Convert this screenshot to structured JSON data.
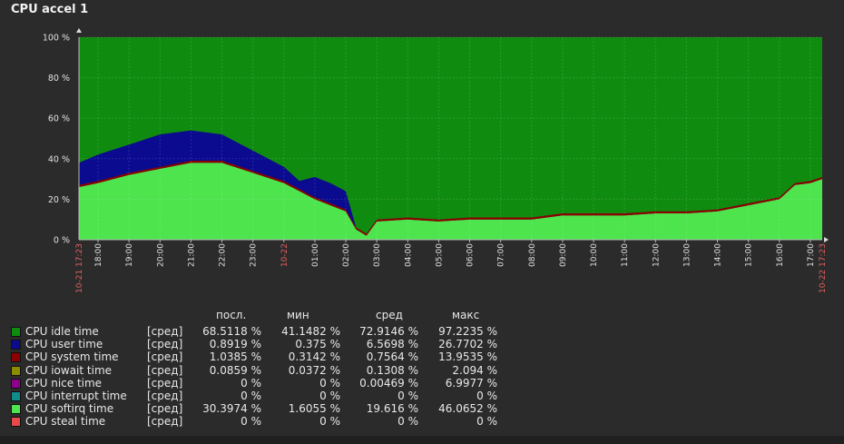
{
  "chart_data": {
    "type": "area",
    "title": "CPU accel 1",
    "ylim": [
      0,
      100
    ],
    "y_ticks": [
      "0 %",
      "20 %",
      "40 %",
      "60 %",
      "80 %",
      "100 %"
    ],
    "x_start_label": "10-21 17:23",
    "x_end_label": "10-22 17:23",
    "x_ticks": [
      "18:00",
      "19:00",
      "20:00",
      "21:00",
      "22:00",
      "23:00",
      "10-22",
      "01:00",
      "02:00",
      "03:00",
      "04:00",
      "05:00",
      "06:00",
      "07:00",
      "08:00",
      "09:00",
      "10:00",
      "11:00",
      "12:00",
      "13:00",
      "14:00",
      "15:00",
      "16:00",
      "17:00"
    ],
    "x_ticks_red": [
      "10-22"
    ],
    "grid": true,
    "x": [
      "17:23",
      "18:00",
      "19:00",
      "20:00",
      "21:00",
      "22:00",
      "23:00",
      "00:00",
      "00:30",
      "01:00",
      "01:30",
      "02:00",
      "02:20",
      "02:40",
      "03:00",
      "04:00",
      "05:00",
      "06:00",
      "07:00",
      "08:00",
      "09:00",
      "10:00",
      "11:00",
      "12:00",
      "13:00",
      "14:00",
      "15:00",
      "16:00",
      "16:30",
      "17:00",
      "17:23"
    ],
    "series": [
      {
        "name": "CPU softirq time",
        "color": "#4ee44e",
        "values": [
          26,
          28,
          32,
          35,
          38,
          38,
          33,
          28,
          24,
          20,
          17,
          14,
          5,
          2,
          9,
          10,
          9,
          10,
          10,
          10,
          12,
          12,
          12,
          13,
          13,
          14,
          17,
          20,
          27,
          28,
          30
        ]
      },
      {
        "name": "CPU system time",
        "color": "#8b0000",
        "values": [
          1,
          1,
          1,
          1,
          1,
          1,
          1,
          1,
          1,
          1,
          1,
          1,
          1,
          1,
          1,
          1,
          1,
          1,
          1,
          1,
          1,
          1,
          1,
          1,
          1,
          1,
          1,
          1,
          1,
          1,
          1
        ]
      },
      {
        "name": "CPU user time",
        "color": "#0b0b90",
        "values": [
          11,
          13,
          14,
          16,
          15,
          13,
          10,
          7,
          4,
          10,
          10,
          9,
          0,
          0,
          0,
          0,
          0,
          0,
          0,
          0,
          0,
          0,
          0,
          0,
          0,
          0,
          0,
          0,
          0,
          0,
          0
        ]
      },
      {
        "name": "CPU idle time",
        "color": "#0f8c0f",
        "values": [
          62,
          58,
          53,
          48,
          46,
          48,
          56,
          64,
          71,
          69,
          72,
          76,
          94,
          97,
          90,
          89,
          90,
          89,
          89,
          89,
          87,
          87,
          87,
          86,
          86,
          85,
          82,
          79,
          72,
          71,
          69
        ]
      }
    ],
    "legend": {
      "headers": {
        "last": "посл.",
        "min": "мин",
        "avg": "сред",
        "max": "макс"
      },
      "rows": [
        {
          "color": "#0f8c0f",
          "name": "CPU idle time",
          "func": "[сред]",
          "last": "68.5118 %",
          "min": "41.1482 %",
          "avg": "72.9146 %",
          "max": "97.2235 %"
        },
        {
          "color": "#0b0b90",
          "name": "CPU user time",
          "func": "[сред]",
          "last": "0.8919 %",
          "min": "0.375 %",
          "avg": "6.5698 %",
          "max": "26.7702 %"
        },
        {
          "color": "#8b0000",
          "name": "CPU system time",
          "func": "[сред]",
          "last": "1.0385 %",
          "min": "0.3142 %",
          "avg": "0.7564 %",
          "max": "13.9535 %"
        },
        {
          "color": "#8c8c00",
          "name": "CPU iowait time",
          "func": "[сред]",
          "last": "0.0859 %",
          "min": "0.0372 %",
          "avg": "0.1308 %",
          "max": "2.094 %"
        },
        {
          "color": "#8c008c",
          "name": "CPU nice time",
          "func": "[сред]",
          "last": "0 %",
          "min": "0 %",
          "avg": "0.00469 %",
          "max": "6.9977 %"
        },
        {
          "color": "#108c8c",
          "name": "CPU interrupt time",
          "func": "[сред]",
          "last": "0 %",
          "min": "0 %",
          "avg": "0 %",
          "max": "0 %"
        },
        {
          "color": "#4ee44e",
          "name": "CPU softirq time",
          "func": "[сред]",
          "last": "30.3974 %",
          "min": "1.6055 %",
          "avg": "19.616 %",
          "max": "46.0652 %"
        },
        {
          "color": "#e84a4a",
          "name": "CPU steal time",
          "func": "[сред]",
          "last": "0 %",
          "min": "0 %",
          "avg": "0 %",
          "max": "0 %"
        }
      ]
    }
  }
}
